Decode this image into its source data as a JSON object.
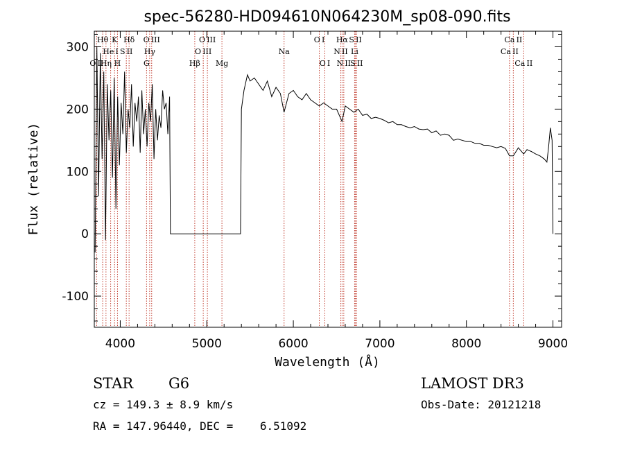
{
  "chart_data": {
    "type": "line",
    "title": "spec-56280-HD094610N064230M_sp08-090.fits",
    "xlabel": "Wavelength (Å)",
    "ylabel": "Flux (relative)",
    "xlim": [
      3700,
      9100
    ],
    "ylim": [
      -150,
      325
    ],
    "xticks": [
      4000,
      5000,
      6000,
      7000,
      8000,
      9000
    ],
    "yticks": [
      -100,
      0,
      100,
      200,
      300
    ],
    "series": [
      {
        "name": "flux",
        "x": [
          3710,
          3730,
          3750,
          3770,
          3790,
          3810,
          3830,
          3850,
          3870,
          3890,
          3910,
          3930,
          3950,
          3970,
          3990,
          4010,
          4030,
          4050,
          4070,
          4090,
          4110,
          4130,
          4150,
          4170,
          4190,
          4210,
          4230,
          4250,
          4270,
          4290,
          4310,
          4330,
          4350,
          4370,
          4390,
          4410,
          4430,
          4450,
          4470,
          4490,
          4510,
          4530,
          4550,
          4570,
          4580,
          5390,
          5400,
          5430,
          5470,
          5500,
          5550,
          5600,
          5650,
          5700,
          5750,
          5800,
          5850,
          5893,
          5950,
          6000,
          6050,
          6100,
          6150,
          6200,
          6250,
          6300,
          6350,
          6400,
          6450,
          6500,
          6563,
          6600,
          6650,
          6700,
          6750,
          6800,
          6850,
          6900,
          6950,
          7000,
          7050,
          7100,
          7150,
          7200,
          7250,
          7300,
          7350,
          7400,
          7450,
          7500,
          7550,
          7600,
          7650,
          7700,
          7750,
          7800,
          7850,
          7900,
          7950,
          8000,
          8050,
          8100,
          8150,
          8200,
          8250,
          8300,
          8350,
          8400,
          8450,
          8498,
          8542,
          8600,
          8662,
          8700,
          8750,
          8800,
          8850,
          8900,
          8930,
          8950,
          8970,
          8990,
          9000
        ],
        "values": [
          -30,
          300,
          60,
          290,
          120,
          260,
          -10,
          240,
          150,
          230,
          90,
          250,
          40,
          220,
          110,
          210,
          160,
          260,
          130,
          200,
          170,
          240,
          140,
          210,
          180,
          220,
          130,
          230,
          160,
          200,
          140,
          210,
          180,
          240,
          120,
          200,
          150,
          190,
          170,
          230,
          200,
          210,
          160,
          220,
          0,
          0,
          200,
          230,
          255,
          245,
          250,
          240,
          230,
          245,
          220,
          235,
          225,
          195,
          225,
          230,
          220,
          215,
          225,
          215,
          210,
          205,
          210,
          205,
          200,
          200,
          180,
          205,
          200,
          195,
          200,
          190,
          192,
          185,
          187,
          185,
          182,
          178,
          180,
          175,
          175,
          172,
          170,
          172,
          168,
          167,
          168,
          162,
          165,
          158,
          160,
          158,
          150,
          152,
          150,
          148,
          148,
          145,
          145,
          142,
          142,
          140,
          138,
          140,
          137,
          125,
          125,
          138,
          128,
          135,
          132,
          128,
          125,
          120,
          115,
          140,
          170,
          150,
          0
        ]
      }
    ],
    "spectral_lines": [
      {
        "label": "O II",
        "wave": 3727,
        "row": 2
      },
      {
        "label": "Hθ",
        "wave": 3797,
        "row": 0
      },
      {
        "label": "He I",
        "wave": 3889,
        "row": 1
      },
      {
        "label": "Hη",
        "wave": 3835,
        "row": 2
      },
      {
        "label": "K",
        "wave": 3934,
        "row": 0
      },
      {
        "label": "H",
        "wave": 3968,
        "row": 2
      },
      {
        "label": "S II",
        "wave": 4070,
        "row": 1
      },
      {
        "label": "Hδ",
        "wave": 4102,
        "row": 0
      },
      {
        "label": "O III",
        "wave": 4363,
        "row": 0
      },
      {
        "label": "Hγ",
        "wave": 4340,
        "row": 1
      },
      {
        "label": "G",
        "wave": 4304,
        "row": 2
      },
      {
        "label": "Hβ",
        "wave": 4861,
        "row": 2
      },
      {
        "label": "O III",
        "wave": 4959,
        "row": 1
      },
      {
        "label": "O III",
        "wave": 5007,
        "row": 0
      },
      {
        "label": "Mg",
        "wave": 5175,
        "row": 2
      },
      {
        "label": "Na",
        "wave": 5893,
        "row": 1
      },
      {
        "label": "O I",
        "wave": 6300,
        "row": 0
      },
      {
        "label": "O I",
        "wave": 6364,
        "row": 2
      },
      {
        "label": "N II",
        "wave": 6548,
        "row": 1
      },
      {
        "label": "Hα",
        "wave": 6563,
        "row": 0
      },
      {
        "label": "N II",
        "wave": 6583,
        "row": 2
      },
      {
        "label": "S II",
        "wave": 6717,
        "row": 0
      },
      {
        "label": "Li",
        "wave": 6708,
        "row": 1
      },
      {
        "label": "S II",
        "wave": 6731,
        "row": 2
      },
      {
        "label": "Ca II",
        "wave": 8498,
        "row": 1
      },
      {
        "label": "Ca II",
        "wave": 8542,
        "row": 0
      },
      {
        "label": "Ca II",
        "wave": 8662,
        "row": 2
      }
    ],
    "line_color": "#c0392b"
  },
  "info": {
    "object_class": "STAR",
    "subclass": "G6",
    "survey": "LAMOST DR3",
    "redshift": "cz = 149.3 ± 8.9 km/s",
    "obs_date": "Obs-Date: 20121218",
    "coords": "RA = 147.96440, DEC =    6.51092"
  }
}
